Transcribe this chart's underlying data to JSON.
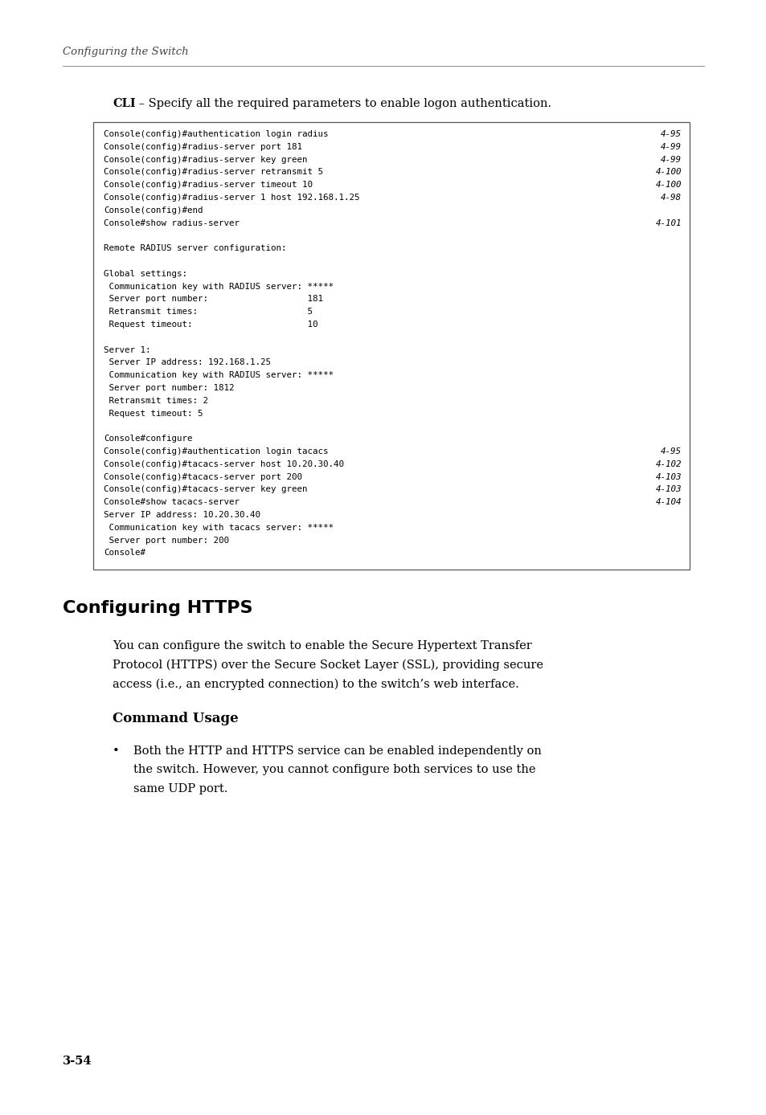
{
  "bg_color": "#ffffff",
  "page_width": 9.54,
  "page_height": 13.88,
  "cli_label": "CLI",
  "cli_intro": " – Specify all the required parameters to enable logon authentication.",
  "code_lines": [
    [
      "Console(config)#authentication login radius",
      "4-95"
    ],
    [
      "Console(config)#radius-server port 181",
      "4-99"
    ],
    [
      "Console(config)#radius-server key green",
      "4-99"
    ],
    [
      "Console(config)#radius-server retransmit 5",
      "4-100"
    ],
    [
      "Console(config)#radius-server timeout 10",
      "4-100"
    ],
    [
      "Console(config)#radius-server 1 host 192.168.1.25",
      "4-98"
    ],
    [
      "Console(config)#end",
      ""
    ],
    [
      "Console#show radius-server",
      "4-101"
    ],
    [
      "",
      ""
    ],
    [
      "Remote RADIUS server configuration:",
      ""
    ],
    [
      "",
      ""
    ],
    [
      "Global settings:",
      ""
    ],
    [
      " Communication key with RADIUS server: *****",
      ""
    ],
    [
      " Server port number:                   181",
      ""
    ],
    [
      " Retransmit times:                     5",
      ""
    ],
    [
      " Request timeout:                      10",
      ""
    ],
    [
      "",
      ""
    ],
    [
      "Server 1:",
      ""
    ],
    [
      " Server IP address: 192.168.1.25",
      ""
    ],
    [
      " Communication key with RADIUS server: *****",
      ""
    ],
    [
      " Server port number: 1812",
      ""
    ],
    [
      " Retransmit times: 2",
      ""
    ],
    [
      " Request timeout: 5",
      ""
    ],
    [
      "",
      ""
    ],
    [
      "Console#configure",
      ""
    ],
    [
      "Console(config)#authentication login tacacs",
      "4-95"
    ],
    [
      "Console(config)#tacacs-server host 10.20.30.40",
      "4-102"
    ],
    [
      "Console(config)#tacacs-server port 200",
      "4-103"
    ],
    [
      "Console(config)#tacacs-server key green",
      "4-103"
    ],
    [
      "Console#show tacacs-server",
      "4-104"
    ],
    [
      "Server IP address: 10.20.30.40",
      ""
    ],
    [
      " Communication key with tacacs server: *****",
      ""
    ],
    [
      " Server port number: 200",
      ""
    ],
    [
      "Console#",
      ""
    ]
  ],
  "section_title": "Configuring HTTPS",
  "section_body": "You can configure the switch to enable the Secure Hypertext Transfer\nProtocol (HTTPS) over the Secure Socket Layer (SSL), providing secure\naccess (i.e., an encrypted connection) to the switch’s web interface.",
  "subsection_title": "Command Usage",
  "bullet_text": "Both the HTTP and HTTPS service can be enabled independently on\nthe switch. However, you cannot configure both services to use the\nsame UDP port.",
  "page_number": "3-54",
  "code_font_size": 7.8,
  "body_font_size": 10.5,
  "header_font_size": 9.5,
  "section_title_font_size": 16,
  "subsection_title_font_size": 12,
  "page_num_font_size": 10.5
}
